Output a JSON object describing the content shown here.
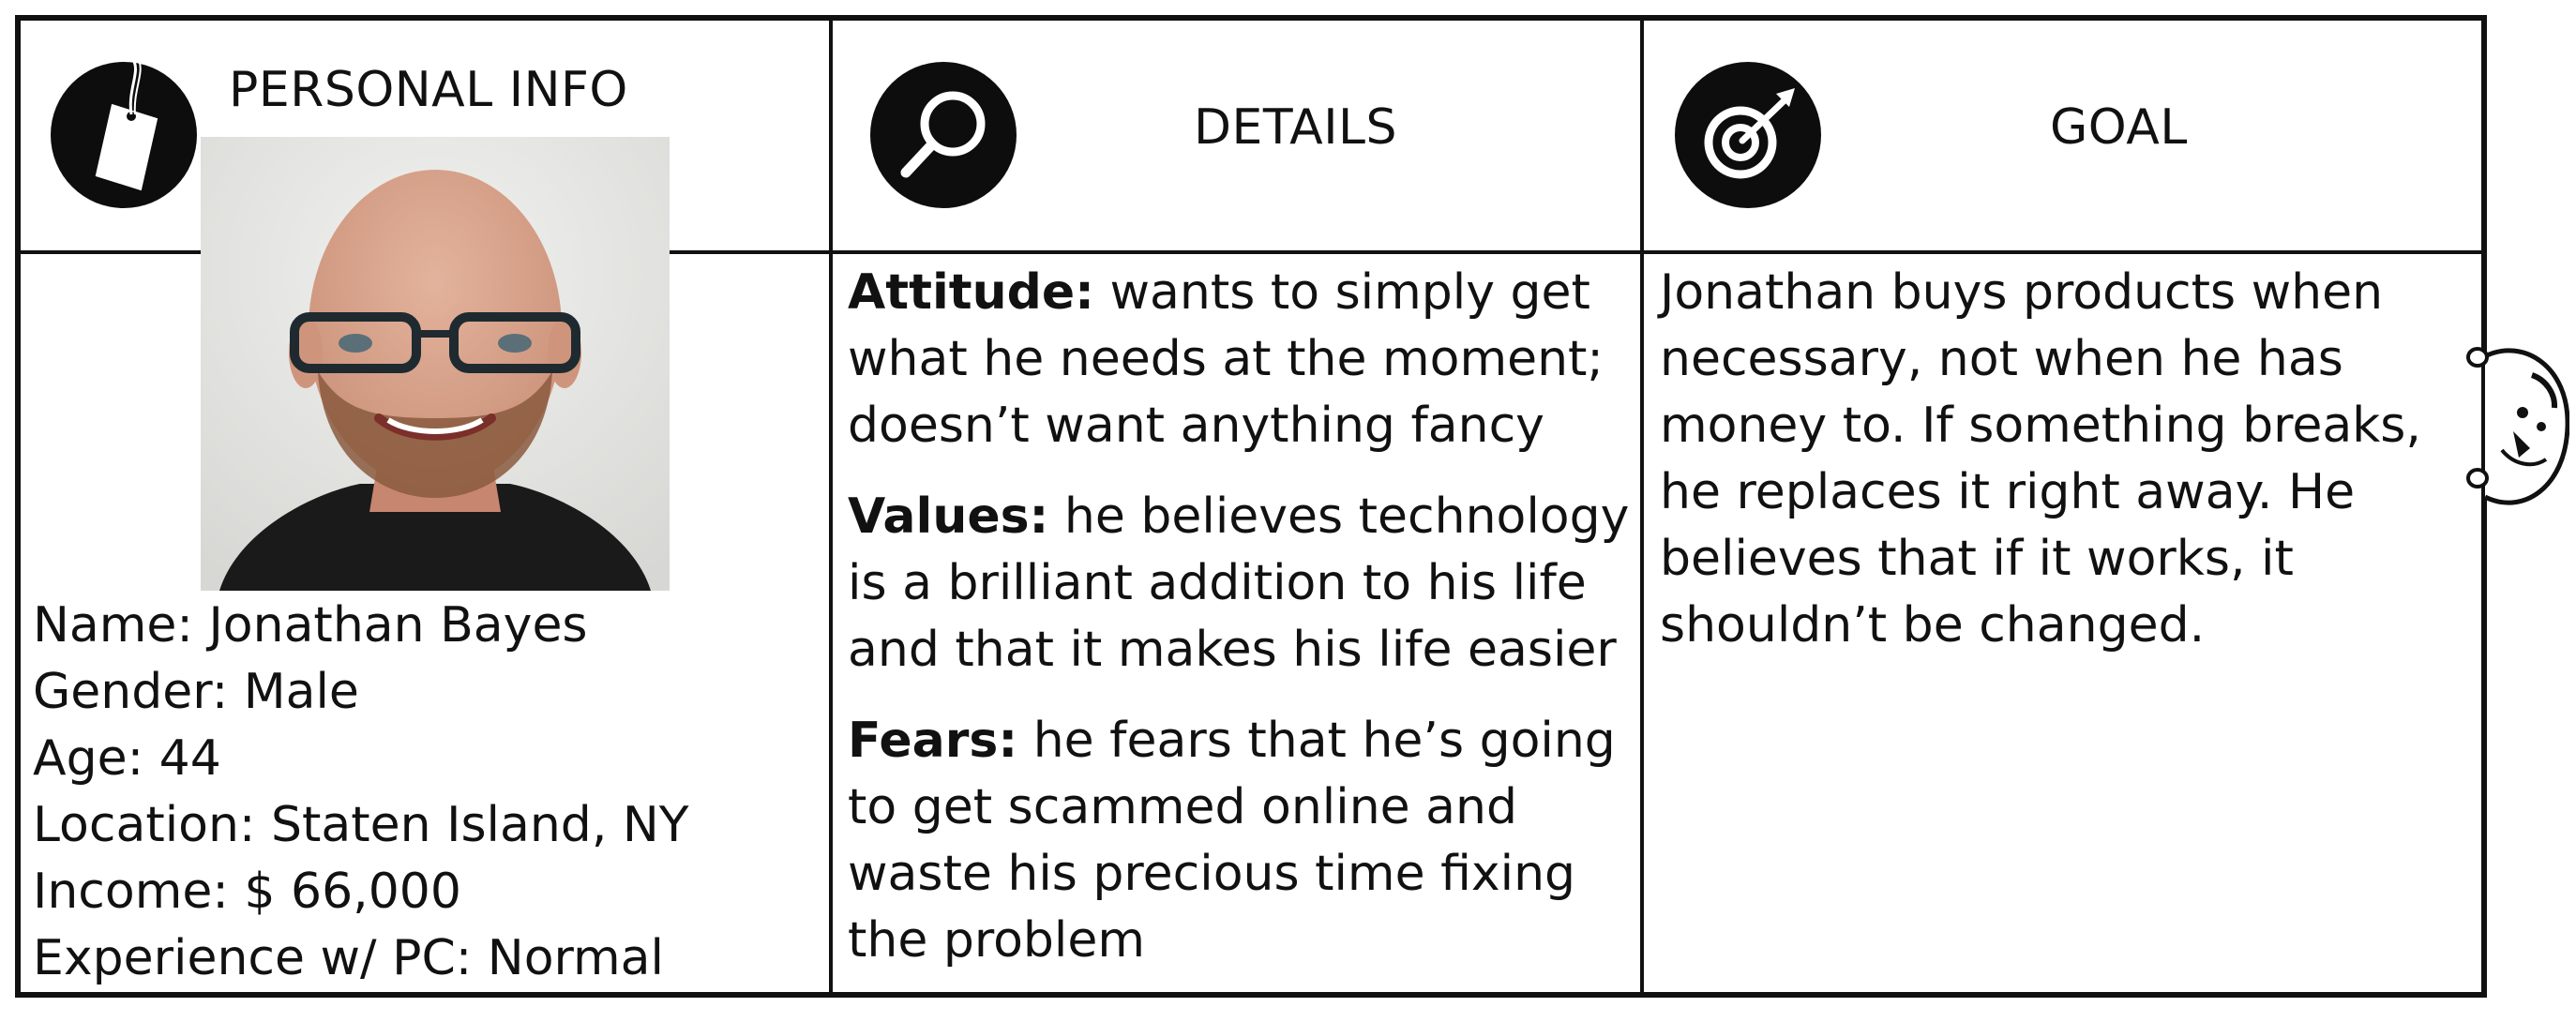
{
  "personal_info": {
    "heading": "PERSONAL INFO",
    "icon": "tag-icon",
    "photo_icon": "person-photo",
    "lines": [
      "Name: Jonathan Bayes",
      "Gender: Male",
      "Age: 44",
      "Location: Staten Island, NY",
      "Income: $ 66,000",
      "Experience w/ PC: Normal"
    ]
  },
  "details": {
    "heading": "DETAILS",
    "icon": "magnifier-icon",
    "items": [
      {
        "label": "Attitude:",
        "text": " wants to simply get what he needs at the moment; doesn’t want anything fancy"
      },
      {
        "label": "Values:",
        "text": " he believes technology is a brilliant addition to his life and that it makes his life easier"
      },
      {
        "label": "Fears:",
        "text": " he fears that he’s going to get scammed online and waste his precious time fixing the problem"
      }
    ]
  },
  "goal": {
    "heading": "GOAL",
    "icon": "target-icon",
    "text": "Jonathan buys products when necessary, not when he has money to. If something breaks,  he replaces it right away. He believes that if it works, it shouldn’t be changed."
  },
  "decor": {
    "peeking_figure_icon": "peeking-figure-icon"
  },
  "colors": {
    "ink": "#111111",
    "icon_fill": "#0d0d0d",
    "background": "#ffffff"
  }
}
